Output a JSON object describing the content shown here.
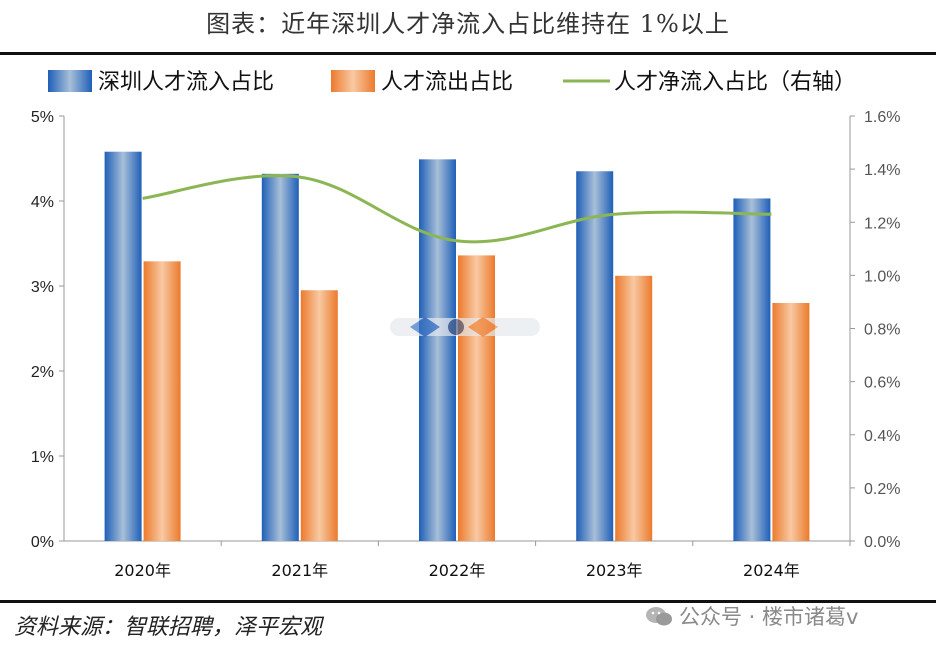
{
  "page": {
    "title": "图表：近年深圳人才净流入占比维持在 1%以上",
    "source": "资料来源：智联招聘，泽平宏观",
    "watermark_text": "公众号 · 楼市诸葛v"
  },
  "colors": {
    "inflow": "#3a73c4",
    "outflow": "#ee8a45",
    "net": "#8bb653"
  },
  "chart_data": {
    "type": "bar",
    "title": "图表：近年深圳人才净流入占比维持在 1%以上",
    "categories": [
      "2020年",
      "2021年",
      "2022年",
      "2023年",
      "2024年"
    ],
    "series": [
      {
        "name": "深圳人才流入占比",
        "type": "bar",
        "axis": "left",
        "values": [
          4.58,
          4.32,
          4.49,
          4.35,
          4.03
        ]
      },
      {
        "name": "人才流出占比",
        "type": "bar",
        "axis": "left",
        "values": [
          3.29,
          2.95,
          3.36,
          3.12,
          2.8
        ]
      },
      {
        "name": "人才净流入占比（右轴）",
        "type": "line",
        "axis": "right",
        "values": [
          1.29,
          1.37,
          1.13,
          1.23,
          1.23
        ]
      }
    ],
    "y_left": {
      "min": 0,
      "max": 5,
      "ticks": [
        "0%",
        "1%",
        "2%",
        "3%",
        "4%",
        "5%"
      ]
    },
    "y_right": {
      "min": 0,
      "max": 1.6,
      "ticks": [
        "0.0%",
        "0.2%",
        "0.4%",
        "0.6%",
        "0.8%",
        "1.0%",
        "1.2%",
        "1.4%",
        "1.6%"
      ]
    },
    "legend_position": "top"
  }
}
